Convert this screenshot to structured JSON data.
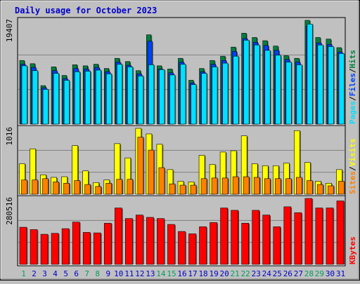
{
  "chart_data": {
    "type": "bar",
    "title": "Daily usage for October 2023",
    "categories": [
      "1",
      "2",
      "3",
      "4",
      "5",
      "6",
      "7",
      "8",
      "9",
      "10",
      "11",
      "12",
      "13",
      "14",
      "15",
      "16",
      "17",
      "18",
      "19",
      "20",
      "21",
      "22",
      "23",
      "24",
      "25",
      "26",
      "27",
      "28",
      "29",
      "30",
      "31"
    ],
    "weekend_days": [
      "1",
      "7",
      "8",
      "14",
      "15",
      "21",
      "22",
      "28",
      "29"
    ],
    "colors": {
      "hits": "#008040",
      "files": "#0040FF",
      "pages": "#00E0FF",
      "visits": "#FFFF00",
      "sites": "#FF8000",
      "kbytes": "#FF0000",
      "title": "#0000CC",
      "weekday_label": "#0000CC",
      "weekend_label": "#00A060"
    },
    "panels": [
      {
        "id": "hits-panel",
        "ymax": 19407,
        "ymax_label": "19407",
        "legend": [
          {
            "text": "Pages",
            "color": "#00E0FF"
          },
          {
            "text": "/",
            "color": "#000000"
          },
          {
            "text": "Files",
            "color": "#0040FF"
          },
          {
            "text": "/",
            "color": "#000000"
          },
          {
            "text": "Hits",
            "color": "#008040"
          }
        ],
        "series": [
          {
            "name": "Hits",
            "color": "#008040",
            "values": [
              11900,
              11300,
              7200,
              10700,
              9100,
              11100,
              10900,
              11200,
              10400,
              12300,
              11700,
              10000,
              16700,
              10900,
              10300,
              12300,
              8200,
              10400,
              11900,
              12700,
              14400,
              17000,
              16200,
              15600,
              14600,
              12800,
              12300,
              19407,
              16200,
              15900,
              14300
            ]
          },
          {
            "name": "Files",
            "color": "#0040FF",
            "values": [
              11200,
              10600,
              6800,
              10000,
              8500,
              10400,
              10300,
              10600,
              9800,
              11600,
              11000,
              9400,
              15500,
              10300,
              9600,
              11600,
              7700,
              9800,
              11200,
              11900,
              13600,
              16000,
              15300,
              14700,
              13800,
              12100,
              11600,
              18300,
              15200,
              14900,
              13500
            ]
          },
          {
            "name": "Pages",
            "color": "#00E0FF",
            "values": [
              10900,
              10000,
              6500,
              9500,
              8200,
              9800,
              9900,
              10100,
              9400,
              11200,
              10700,
              9000,
              11100,
              10200,
              9200,
              11200,
              7400,
              9500,
              10700,
              11400,
              12700,
              15700,
              14800,
              13800,
              12900,
              11600,
              11100,
              18700,
              14800,
              14500,
              13200
            ]
          }
        ]
      },
      {
        "id": "visits-panel",
        "ymax": 1016,
        "ymax_label": "1016",
        "legend": [
          {
            "text": "Sites",
            "color": "#FF8000"
          },
          {
            "text": "/",
            "color": "#000000"
          },
          {
            "text": "Visits",
            "color": "#FFFF00"
          }
        ],
        "series": [
          {
            "name": "Visits",
            "color": "#FFFF00",
            "values": [
              470,
              700,
              300,
              260,
              270,
              750,
              360,
              180,
              220,
              780,
              560,
              1016,
              930,
              770,
              380,
              200,
              190,
              600,
              460,
              650,
              670,
              900,
              470,
              440,
              440,
              480,
              980,
              490,
              200,
              170,
              380
            ]
          },
          {
            "name": "Sites",
            "color": "#FF8000",
            "values": [
              220,
              220,
              240,
              190,
              170,
              210,
              150,
              120,
              170,
              230,
              230,
              880,
              680,
              410,
              160,
              140,
              140,
              240,
              250,
              250,
              270,
              270,
              260,
              240,
              240,
              240,
              260,
              210,
              150,
              130,
              200
            ]
          }
        ]
      },
      {
        "id": "kbytes-panel",
        "ymax": 280516,
        "ymax_label": "280516",
        "legend": [
          {
            "text": "KBytes",
            "color": "#FF0000"
          }
        ],
        "series": [
          {
            "name": "KBytes",
            "color": "#FF0000",
            "values": [
              158000,
              148000,
              128000,
              132000,
              152000,
              180000,
              136000,
              134000,
              175000,
              240000,
              195000,
              210000,
              200000,
              195000,
              170000,
              140000,
              130000,
              160000,
              178000,
              240000,
              230000,
              175000,
              230000,
              210000,
              160000,
              245000,
              220000,
              280516,
              240000,
              240000,
              270000
            ]
          }
        ]
      }
    ]
  }
}
